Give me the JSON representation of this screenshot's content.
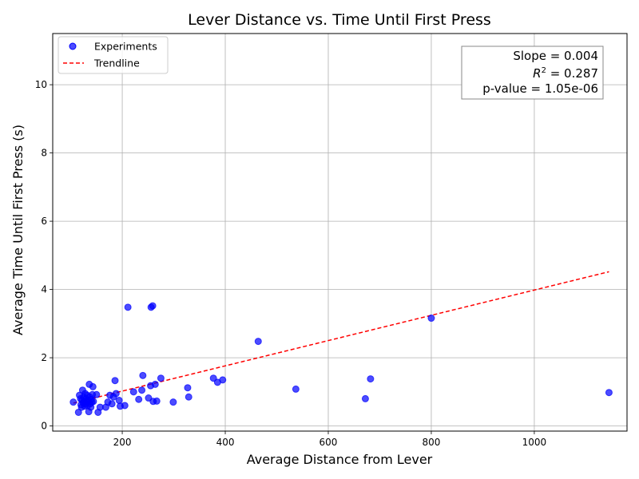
{
  "chart_data": {
    "type": "scatter",
    "title": "Lever Distance vs. Time Until First Press",
    "xlabel": "Average Distance from Lever",
    "ylabel": "Average Time Until First Press (s)",
    "xlim": [
      65,
      1180
    ],
    "ylim": [
      -0.15,
      11.5
    ],
    "xticks": [
      200,
      400,
      600,
      800,
      1000
    ],
    "yticks": [
      0,
      2,
      4,
      6,
      8,
      10
    ],
    "grid": true,
    "legend_position": "top-left",
    "colors": {
      "points": "#0000ff",
      "trend": "#ff0000"
    },
    "series": [
      {
        "name": "Experiments",
        "kind": "scatter",
        "points": [
          [
            105,
            0.7
          ],
          [
            115,
            0.4
          ],
          [
            117,
            0.9
          ],
          [
            119,
            0.8
          ],
          [
            120,
            0.62
          ],
          [
            121,
            0.55
          ],
          [
            122,
            0.75
          ],
          [
            123,
            1.05
          ],
          [
            124,
            0.68
          ],
          [
            125,
            0.85
          ],
          [
            126,
            0.72
          ],
          [
            127,
            0.58
          ],
          [
            128,
            0.95
          ],
          [
            129,
            0.65
          ],
          [
            130,
            0.8
          ],
          [
            131,
            0.7
          ],
          [
            132,
            0.9
          ],
          [
            133,
            0.6
          ],
          [
            134,
            0.75
          ],
          [
            135,
            0.42
          ],
          [
            136,
            1.22
          ],
          [
            137,
            0.85
          ],
          [
            138,
            0.65
          ],
          [
            139,
            0.55
          ],
          [
            140,
            0.78
          ],
          [
            141,
            0.7
          ],
          [
            142,
            0.92
          ],
          [
            143,
            1.15
          ],
          [
            144,
            0.72
          ],
          [
            150,
            0.92
          ],
          [
            153,
            0.4
          ],
          [
            157,
            0.55
          ],
          [
            168,
            0.55
          ],
          [
            172,
            0.7
          ],
          [
            176,
            0.9
          ],
          [
            180,
            0.65
          ],
          [
            183,
            0.85
          ],
          [
            186,
            1.33
          ],
          [
            188,
            0.95
          ],
          [
            194,
            0.75
          ],
          [
            196,
            0.58
          ],
          [
            205,
            0.6
          ],
          [
            211,
            3.48
          ],
          [
            222,
            1.0
          ],
          [
            232,
            0.78
          ],
          [
            238,
            1.05
          ],
          [
            240,
            1.48
          ],
          [
            251,
            0.82
          ],
          [
            255,
            1.18
          ],
          [
            256,
            3.48
          ],
          [
            259,
            3.52
          ],
          [
            260,
            0.72
          ],
          [
            264,
            1.22
          ],
          [
            267,
            0.73
          ],
          [
            275,
            1.4
          ],
          [
            299,
            0.7
          ],
          [
            327,
            1.12
          ],
          [
            329,
            0.85
          ],
          [
            377,
            1.4
          ],
          [
            385,
            1.28
          ],
          [
            395,
            1.35
          ],
          [
            464,
            2.48
          ],
          [
            537,
            1.08
          ],
          [
            672,
            0.8
          ],
          [
            682,
            1.38
          ],
          [
            800,
            3.16
          ],
          [
            1145,
            0.98
          ]
        ]
      },
      {
        "name": "Trendline",
        "kind": "line",
        "x": [
          105,
          1145
        ],
        "y": [
          0.67,
          4.52
        ]
      }
    ],
    "annotations": {
      "slope": "Slope = 0.004",
      "r2_prefix": "R",
      "r2_sup": "2",
      "r2_value": " = 0.287",
      "pvalue": "p-value = 1.05e-06"
    }
  }
}
